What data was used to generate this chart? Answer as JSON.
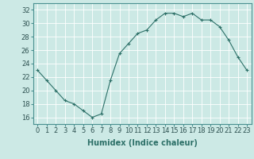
{
  "x": [
    0,
    1,
    2,
    3,
    4,
    5,
    6,
    7,
    8,
    9,
    10,
    11,
    12,
    13,
    14,
    15,
    16,
    17,
    18,
    19,
    20,
    21,
    22,
    23
  ],
  "y": [
    23.0,
    21.5,
    20.0,
    18.5,
    18.0,
    17.0,
    16.0,
    16.5,
    21.5,
    25.5,
    27.0,
    28.5,
    29.0,
    30.5,
    31.5,
    31.5,
    31.0,
    31.5,
    30.5,
    30.5,
    29.5,
    27.5,
    25.0,
    23.0
  ],
  "line_color": "#2d7068",
  "marker": "+",
  "marker_size": 3,
  "marker_linewidth": 0.8,
  "background_color": "#cce9e5",
  "grid_color": "#ffffff",
  "xlabel": "Humidex (Indice chaleur)",
  "xlabel_fontsize": 7,
  "tick_fontsize": 6,
  "ylim": [
    15,
    33
  ],
  "xlim": [
    -0.5,
    23.5
  ],
  "yticks": [
    16,
    18,
    20,
    22,
    24,
    26,
    28,
    30,
    32
  ],
  "xticks": [
    0,
    1,
    2,
    3,
    4,
    5,
    6,
    7,
    8,
    9,
    10,
    11,
    12,
    13,
    14,
    15,
    16,
    17,
    18,
    19,
    20,
    21,
    22,
    23
  ],
  "line_width": 0.8,
  "spine_color": "#4a9090"
}
